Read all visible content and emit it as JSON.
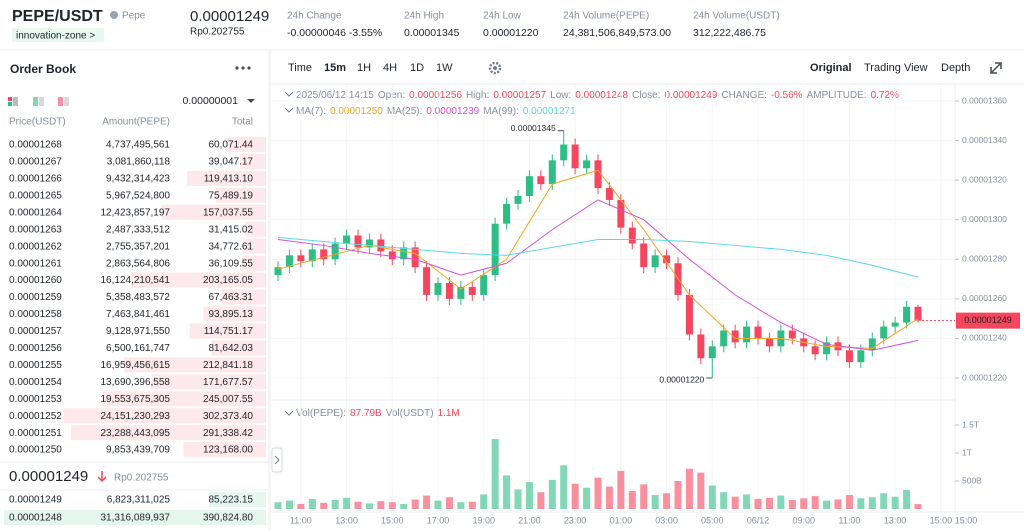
{
  "header": {
    "pair": "PEPE/USDT",
    "token_name": "Pepe",
    "zone_tag": "innovation-zone >",
    "price": "0.00001249",
    "price_local": "Rp0.202755",
    "stats": [
      {
        "label": "24h Change",
        "value": "-0.00000046 -3.55%"
      },
      {
        "label": "24h High",
        "value": "0.00001345"
      },
      {
        "label": "24h Low",
        "value": "0.00001220"
      },
      {
        "label": "24h Volume(PEPE)",
        "value": "24,381,506,849,573.00"
      },
      {
        "label": "24h Volume(USDT)",
        "value": "312,222,486.75"
      }
    ]
  },
  "order_book": {
    "title": "Order Book",
    "precision": "0.00000001",
    "columns": [
      "Price(USDT)",
      "Amount(PEPE)",
      "Total"
    ],
    "asks": [
      [
        "0.00001268",
        "4,737,495,561",
        "60,071.44"
      ],
      [
        "0.00001267",
        "3,081,860,118",
        "39,047.17"
      ],
      [
        "0.00001266",
        "9,432,314,423",
        "119,413.10"
      ],
      [
        "0.00001265",
        "5,967,524,800",
        "75,489.19"
      ],
      [
        "0.00001264",
        "12,423,857,197",
        "157,037.55"
      ],
      [
        "0.00001263",
        "2,487,333,512",
        "31,415.02"
      ],
      [
        "0.00001262",
        "2,755,357,201",
        "34,772.61"
      ],
      [
        "0.00001261",
        "2,863,564,806",
        "36,109.55"
      ],
      [
        "0.00001260",
        "16,124,210,541",
        "203,165.05"
      ],
      [
        "0.00001259",
        "5,358,483,572",
        "67,463.31"
      ],
      [
        "0.00001258",
        "7,463,841,461",
        "93,895.13"
      ],
      [
        "0.00001257",
        "9,128,971,550",
        "114,751.17"
      ],
      [
        "0.00001256",
        "6,500,161,747",
        "81,642.03"
      ],
      [
        "0.00001255",
        "16,959,456,615",
        "212,841.18"
      ],
      [
        "0.00001254",
        "13,690,396,558",
        "171,677.57"
      ],
      [
        "0.00001253",
        "19,553,675,305",
        "245,007.55"
      ],
      [
        "0.00001252",
        "24,151,230,293",
        "302,373.40"
      ],
      [
        "0.00001251",
        "23,288,443,095",
        "291,338.42"
      ],
      [
        "0.00001250",
        "9,853,439,709",
        "123,168.00"
      ]
    ],
    "last_price": "0.00001249",
    "last_price_local": "Rp0.202755",
    "bids": [
      [
        "0.00001249",
        "6,823,311,025",
        "85,223.15"
      ],
      [
        "0.00001248",
        "31,316,089,937",
        "390,824.80"
      ]
    ]
  },
  "chart": {
    "type": "candlestick",
    "intervals": [
      "Time",
      "15m",
      "1H",
      "4H",
      "1D",
      "1W"
    ],
    "active_interval": "15m",
    "views": [
      "Original",
      "Trading View",
      "Depth"
    ],
    "active_view": "Original",
    "info_date": "2025/06/12 14:15",
    "info_fields": [
      {
        "label": "Open:",
        "value": "0.00001256"
      },
      {
        "label": "High:",
        "value": "0.00001257"
      },
      {
        "label": "Low:",
        "value": "0.00001248"
      },
      {
        "label": "Close:",
        "value": "0.00001249"
      },
      {
        "label": "CHANGE:",
        "value": "-0.56%"
      },
      {
        "label": "AMPLITUDE:",
        "value": "0.72%"
      }
    ],
    "ylim": [
      1.22e-05,
      1.36e-05
    ],
    "yticks": [
      {
        "value": 1.22e-05,
        "label": "0.00001220"
      },
      {
        "value": 1.24e-05,
        "label": "0.00001240"
      },
      {
        "value": 1.26e-05,
        "label": "0.00001260"
      },
      {
        "value": 1.28e-05,
        "label": "0.00001280"
      },
      {
        "value": 1.3e-05,
        "label": "0.00001300"
      },
      {
        "value": 1.32e-05,
        "label": "0.00001320"
      },
      {
        "value": 1.34e-05,
        "label": "0.00001340"
      },
      {
        "value": 1.36e-05,
        "label": "0.00001360"
      }
    ],
    "xlim": [
      0,
      56
    ],
    "xticks": [
      {
        "value": 2,
        "label": "11:00"
      },
      {
        "value": 6,
        "label": "13:00"
      },
      {
        "value": 10,
        "label": "15:00"
      },
      {
        "value": 14,
        "label": "17:00"
      },
      {
        "value": 18,
        "label": "19:00"
      },
      {
        "value": 22,
        "label": "21:00"
      },
      {
        "value": 26,
        "label": "23:00"
      },
      {
        "value": 30,
        "label": "01:00"
      },
      {
        "value": 34,
        "label": "03:00"
      },
      {
        "value": 38,
        "label": "05:00"
      },
      {
        "value": 42,
        "label": "06/12"
      },
      {
        "value": 46,
        "label": "09:00"
      },
      {
        "value": 50,
        "label": "11:00"
      },
      {
        "value": 54,
        "label": "13:00"
      },
      {
        "value": 58,
        "label": "15:00"
      }
    ],
    "x_axis_end_label": "15:00",
    "high_label": "0.00001345",
    "low_label": "0.00001220",
    "open": [
      1.272e-05,
      1.276e-05,
      1.282e-05,
      1.279e-05,
      1.285e-05,
      1.28e-05,
      1.288e-05,
      1.292e-05,
      1.286e-05,
      1.29e-05,
      1.284e-05,
      1.28e-05,
      1.286e-05,
      1.276e-05,
      1.262e-05,
      1.268e-05,
      1.26e-05,
      1.266e-05,
      1.262e-05,
      1.272e-05,
      1.298e-05,
      1.308e-05,
      1.312e-05,
      1.322e-05,
      1.318e-05,
      1.33e-05,
      1.338e-05,
      1.326e-05,
      1.33e-05,
      1.316e-05,
      1.31e-05,
      1.296e-05,
      1.288e-05,
      1.276e-05,
      1.282e-05,
      1.278e-05,
      1.262e-05,
      1.242e-05,
      1.23e-05,
      1.236e-05,
      1.244e-05,
      1.238e-05,
      1.246e-05,
      1.24e-05,
      1.236e-05,
      1.244e-05,
      1.24e-05,
      1.236e-05,
      1.232e-05,
      1.238e-05,
      1.234e-05,
      1.228e-05,
      1.234e-05,
      1.24e-05,
      1.246e-05,
      1.248e-05,
      1.256e-05
    ],
    "high": [
      1.279e-05,
      1.285e-05,
      1.285e-05,
      1.288e-05,
      1.288e-05,
      1.291e-05,
      1.295e-05,
      1.295e-05,
      1.293e-05,
      1.293e-05,
      1.287e-05,
      1.289e-05,
      1.289e-05,
      1.279e-05,
      1.271e-05,
      1.271e-05,
      1.269e-05,
      1.269e-05,
      1.275e-05,
      1.301e-05,
      1.311e-05,
      1.315e-05,
      1.325e-05,
      1.325e-05,
      1.333e-05,
      1.345e-05,
      1.341e-05,
      1.333e-05,
      1.333e-05,
      1.319e-05,
      1.313e-05,
      1.299e-05,
      1.291e-05,
      1.285e-05,
      1.285e-05,
      1.281e-05,
      1.265e-05,
      1.245e-05,
      1.239e-05,
      1.247e-05,
      1.247e-05,
      1.249e-05,
      1.249e-05,
      1.243e-05,
      1.247e-05,
      1.247e-05,
      1.243e-05,
      1.239e-05,
      1.241e-05,
      1.241e-05,
      1.237e-05,
      1.237e-05,
      1.243e-05,
      1.249e-05,
      1.251e-05,
      1.259e-05,
      1.257e-05
    ],
    "low": [
      1.269e-05,
      1.273e-05,
      1.276e-05,
      1.276e-05,
      1.277e-05,
      1.277e-05,
      1.285e-05,
      1.283e-05,
      1.283e-05,
      1.281e-05,
      1.277e-05,
      1.277e-05,
      1.273e-05,
      1.259e-05,
      1.259e-05,
      1.257e-05,
      1.257e-05,
      1.259e-05,
      1.259e-05,
      1.269e-05,
      1.295e-05,
      1.305e-05,
      1.309e-05,
      1.315e-05,
      1.315e-05,
      1.327e-05,
      1.323e-05,
      1.323e-05,
      1.313e-05,
      1.307e-05,
      1.293e-05,
      1.285e-05,
      1.273e-05,
      1.273e-05,
      1.275e-05,
      1.259e-05,
      1.239e-05,
      1.227e-05,
      1.22e-05,
      1.233e-05,
      1.235e-05,
      1.235e-05,
      1.237e-05,
      1.233e-05,
      1.233e-05,
      1.237e-05,
      1.233e-05,
      1.229e-05,
      1.229e-05,
      1.231e-05,
      1.225e-05,
      1.225e-05,
      1.231e-05,
      1.237e-05,
      1.243e-05,
      1.245e-05,
      1.248e-05
    ],
    "close": [
      1.276e-05,
      1.282e-05,
      1.279e-05,
      1.285e-05,
      1.28e-05,
      1.288e-05,
      1.292e-05,
      1.286e-05,
      1.29e-05,
      1.284e-05,
      1.28e-05,
      1.286e-05,
      1.276e-05,
      1.262e-05,
      1.268e-05,
      1.26e-05,
      1.266e-05,
      1.262e-05,
      1.272e-05,
      1.298e-05,
      1.308e-05,
      1.312e-05,
      1.322e-05,
      1.318e-05,
      1.33e-05,
      1.338e-05,
      1.326e-05,
      1.33e-05,
      1.316e-05,
      1.31e-05,
      1.296e-05,
      1.288e-05,
      1.276e-05,
      1.282e-05,
      1.278e-05,
      1.262e-05,
      1.242e-05,
      1.23e-05,
      1.236e-05,
      1.244e-05,
      1.238e-05,
      1.246e-05,
      1.24e-05,
      1.236e-05,
      1.244e-05,
      1.24e-05,
      1.236e-05,
      1.232e-05,
      1.238e-05,
      1.234e-05,
      1.228e-05,
      1.234e-05,
      1.24e-05,
      1.246e-05,
      1.248e-05,
      1.256e-05,
      1.249e-05
    ],
    "up_color": "#2ebd85",
    "down_color": "#f6465d",
    "ma_x": [
      0,
      4,
      8,
      12,
      16,
      20,
      24,
      28,
      32,
      36,
      40,
      44,
      48,
      52,
      56
    ],
    "ma_series": [
      {
        "name": "MA(7):",
        "color": "#f5a623",
        "legend_value": "0.00001250",
        "values": [
          1.275e-05,
          1.281e-05,
          1.287e-05,
          1.283e-05,
          1.265e-05,
          1.28e-05,
          1.318e-05,
          1.325e-05,
          1.295e-05,
          1.262e-05,
          1.24e-05,
          1.24e-05,
          1.236e-05,
          1.235e-05,
          1.25e-05
        ]
      },
      {
        "name": "MA(25):",
        "color": "#d84fd8",
        "legend_value": "0.00001239",
        "values": [
          1.29e-05,
          1.287e-05,
          1.283e-05,
          1.28e-05,
          1.272e-05,
          1.278e-05,
          1.295e-05,
          1.31e-05,
          1.3e-05,
          1.28e-05,
          1.262e-05,
          1.248e-05,
          1.237e-05,
          1.234e-05,
          1.239e-05
        ]
      },
      {
        "name": "MA(99):",
        "color": "#5ad8e6",
        "legend_value": "0.00001271",
        "values": [
          1.291e-05,
          1.289e-05,
          1.287e-05,
          1.285e-05,
          1.283e-05,
          1.282e-05,
          1.286e-05,
          1.29e-05,
          1.29e-05,
          1.289e-05,
          1.287e-05,
          1.285e-05,
          1.282e-05,
          1.277e-05,
          1.271e-05
        ]
      }
    ],
    "volume_legend": [
      {
        "label": "Vol(PEPE):",
        "value": "87.79B"
      },
      {
        "label": "Vol(USDT)",
        "value": "1.1M"
      }
    ],
    "vlim": [
      0,
      1500000000000
    ],
    "vticks": [
      {
        "value": 500000000000,
        "label": "500B"
      },
      {
        "value": 1000000000000,
        "label": "1T"
      },
      {
        "value": 1500000000000,
        "label": "1.5T"
      }
    ],
    "volume": [
      120000000000.0,
      150000000000.0,
      90000000000.0,
      180000000000.0,
      110000000000.0,
      160000000000.0,
      200000000000.0,
      130000000000.0,
      100000000000.0,
      140000000000.0,
      120000000000.0,
      90000000000.0,
      170000000000.0,
      240000000000.0,
      150000000000.0,
      210000000000.0,
      120000000000.0,
      130000000000.0,
      260000000000.0,
      1250000000000.0,
      600000000000.0,
      350000000000.0,
      480000000000.0,
      300000000000.0,
      520000000000.0,
      780000000000.0,
      450000000000.0,
      380000000000.0,
      560000000000.0,
      400000000000.0,
      680000000000.0,
      320000000000.0,
      440000000000.0,
      250000000000.0,
      280000000000.0,
      500000000000.0,
      720000000000.0,
      650000000000.0,
      420000000000.0,
      300000000000.0,
      220000000000.0,
      260000000000.0,
      180000000000.0,
      200000000000.0,
      240000000000.0,
      160000000000.0,
      190000000000.0,
      230000000000.0,
      150000000000.0,
      170000000000.0,
      250000000000.0,
      190000000000.0,
      210000000000.0,
      280000000000.0,
      220000000000.0,
      340000000000.0,
      87790000000.0
    ]
  }
}
